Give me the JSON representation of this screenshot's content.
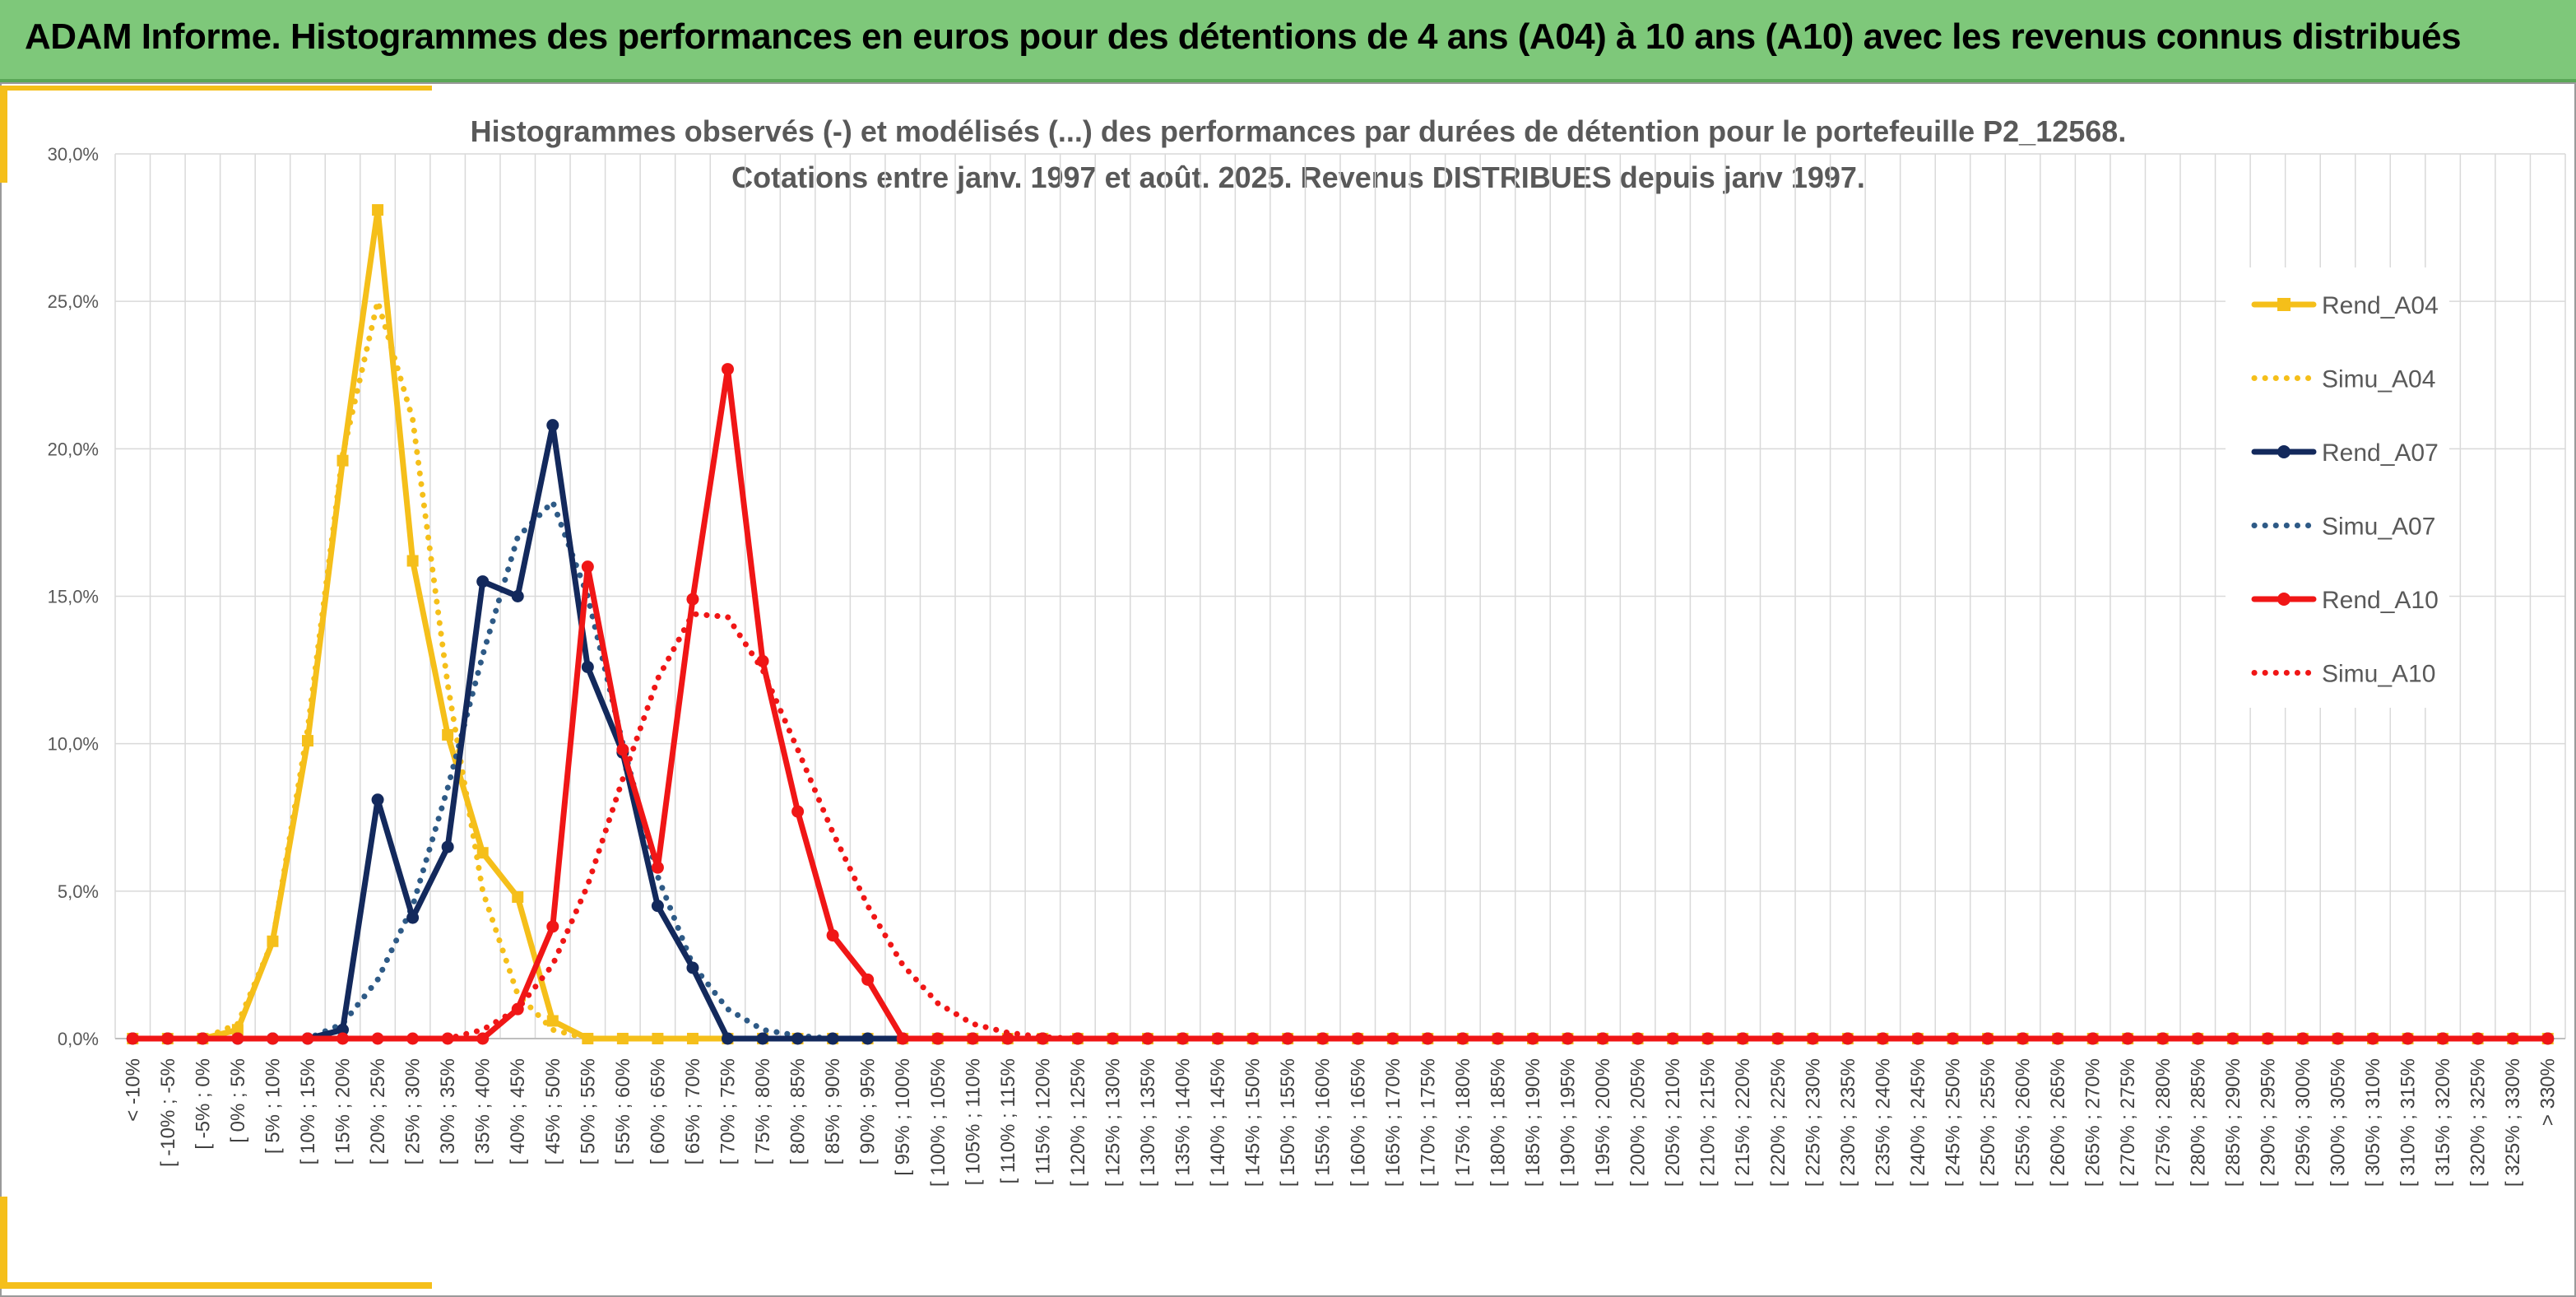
{
  "page": {
    "banner_title": "ADAM Informe. Histogrammes des performances en euros pour des détentions de 4 ans (A04) à 10 ans (A10) avec les revenus connus distribués"
  },
  "colors": {
    "banner": "#7ec87a",
    "accent": "#f5bf1a",
    "a04": "#f5bf1a",
    "a07": "#13295c",
    "a07_simu": "#2e5a86",
    "a10": "#f01616"
  },
  "chart_data": {
    "type": "line",
    "title": "Histogrammes observés (-) et modélisés (...) des performances par durées de détention pour le portefeuille P2_12568.",
    "subtitle": "Cotations entre janv. 1997 et août. 2025. Revenus DISTRIBUES depuis janv 1997.",
    "xlabel": "",
    "ylabel": "",
    "ylim": [
      0,
      30
    ],
    "yticks": [
      0,
      5,
      10,
      15,
      20,
      25,
      30
    ],
    "ytick_labels": [
      "0,0%",
      "5,0%",
      "10,0%",
      "15,0%",
      "20,0%",
      "25,0%",
      "30,0%"
    ],
    "grid": true,
    "legend_position": "right",
    "categories": [
      "< -10%",
      "[ -10% ; -5%",
      "[ -5% ; 0%",
      "[ 0% ; 5%",
      "[ 5% ; 10%",
      "[ 10% ; 15%",
      "[ 15% ; 20%",
      "[ 20% ; 25%",
      "[ 25% ; 30%",
      "[ 30% ; 35%",
      "[ 35% ; 40%",
      "[ 40% ; 45%",
      "[ 45% ; 50%",
      "[ 50% ; 55%",
      "[ 55% ; 60%",
      "[ 60% ; 65%",
      "[ 65% ; 70%",
      "[ 70% ; 75%",
      "[ 75% ; 80%",
      "[ 80% ; 85%",
      "[ 85% ; 90%",
      "[ 90% ; 95%",
      "[ 95% ; 100%",
      "[ 100% ; 105%",
      "[ 105% ; 110%",
      "[ 110% ; 115%",
      "[ 115% ; 120%",
      "[ 120% ; 125%",
      "[ 125% ; 130%",
      "[ 130% ; 135%",
      "[ 135% ; 140%",
      "[ 140% ; 145%",
      "[ 145% ; 150%",
      "[ 150% ; 155%",
      "[ 155% ; 160%",
      "[ 160% ; 165%",
      "[ 165% ; 170%",
      "[ 170% ; 175%",
      "[ 175% ; 180%",
      "[ 180% ; 185%",
      "[ 185% ; 190%",
      "[ 190% ; 195%",
      "[ 195% ; 200%",
      "[ 200% ; 205%",
      "[ 205% ; 210%",
      "[ 210% ; 215%",
      "[ 215% ; 220%",
      "[ 220% ; 225%",
      "[ 225% ; 230%",
      "[ 230% ; 235%",
      "[ 235% ; 240%",
      "[ 240% ; 245%",
      "[ 245% ; 250%",
      "[ 250% ; 255%",
      "[ 255% ; 260%",
      "[ 260% ; 265%",
      "[ 265% ; 270%",
      "[ 270% ; 275%",
      "[ 275% ; 280%",
      "[ 280% ; 285%",
      "[ 285% ; 290%",
      "[ 290% ; 295%",
      "[ 295% ; 300%",
      "[ 300% ; 305%",
      "[ 305% ; 310%",
      "[ 310% ; 315%",
      "[ 315% ; 320%",
      "[ 320% ; 325%",
      "[ 325% ; 330%",
      "> 330%"
    ],
    "series": [
      {
        "name": "Rend_A04",
        "style": "solid",
        "marker": "square",
        "color": "#f5bf1a",
        "values": [
          0,
          0,
          0,
          0.3,
          3.3,
          10.1,
          19.6,
          28.1,
          16.2,
          10.3,
          6.3,
          4.8,
          0.6,
          0,
          0,
          0,
          0,
          0,
          0,
          0,
          0,
          0,
          0,
          0,
          0,
          0,
          0,
          0,
          0,
          0,
          0,
          0,
          0,
          0,
          0,
          0,
          0,
          0,
          0,
          0,
          0,
          0,
          0,
          0,
          0,
          0,
          0,
          0,
          0,
          0,
          0,
          0,
          0,
          0,
          0,
          0,
          0,
          0,
          0,
          0,
          0,
          0,
          0,
          0,
          0,
          0,
          0,
          0,
          0,
          0
        ]
      },
      {
        "name": "Simu_A04",
        "style": "dotted",
        "color": "#f5bf1a",
        "values": [
          0,
          0,
          0,
          0.5,
          3.3,
          10.5,
          19.8,
          25,
          21,
          12,
          5,
          1.5,
          0.3,
          0,
          0,
          0,
          0,
          0,
          0,
          0,
          0,
          0,
          0,
          0,
          0,
          0,
          0,
          0,
          0,
          0,
          0,
          0,
          0,
          0,
          0,
          0,
          0,
          0,
          0,
          0,
          0,
          0,
          0,
          0,
          0,
          0,
          0,
          0,
          0,
          0,
          0,
          0,
          0,
          0,
          0,
          0,
          0,
          0,
          0,
          0,
          0,
          0,
          0,
          0,
          0,
          0,
          0,
          0,
          0,
          0
        ]
      },
      {
        "name": "Rend_A07",
        "style": "solid",
        "marker": "circle",
        "color": "#13295c",
        "values": [
          0,
          0,
          0,
          0,
          0,
          0,
          0.3,
          8.1,
          4.1,
          6.5,
          15.5,
          15,
          20.8,
          12.6,
          9.7,
          4.5,
          2.4,
          0,
          0,
          0,
          0,
          0,
          0,
          0,
          0,
          0,
          0,
          0,
          0,
          0,
          0,
          0,
          0,
          0,
          0,
          0,
          0,
          0,
          0,
          0,
          0,
          0,
          0,
          0,
          0,
          0,
          0,
          0,
          0,
          0,
          0,
          0,
          0,
          0,
          0,
          0,
          0,
          0,
          0,
          0,
          0,
          0,
          0,
          0,
          0,
          0,
          0,
          0,
          0,
          0
        ]
      },
      {
        "name": "Simu_A07",
        "style": "dotted",
        "color": "#2e5a86",
        "values": [
          0,
          0,
          0,
          0,
          0,
          0,
          0.5,
          2,
          4.5,
          8.5,
          13,
          17,
          18.2,
          15,
          10,
          5.5,
          2.5,
          1,
          0.3,
          0.1,
          0,
          0,
          0,
          0,
          0,
          0,
          0,
          0,
          0,
          0,
          0,
          0,
          0,
          0,
          0,
          0,
          0,
          0,
          0,
          0,
          0,
          0,
          0,
          0,
          0,
          0,
          0,
          0,
          0,
          0,
          0,
          0,
          0,
          0,
          0,
          0,
          0,
          0,
          0,
          0,
          0,
          0,
          0,
          0,
          0,
          0,
          0,
          0,
          0,
          0
        ]
      },
      {
        "name": "Rend_A10",
        "style": "solid",
        "marker": "circle",
        "color": "#f01616",
        "values": [
          0,
          0,
          0,
          0,
          0,
          0,
          0,
          0,
          0,
          0,
          0,
          1,
          3.8,
          16,
          9.8,
          5.8,
          14.9,
          22.7,
          12.8,
          7.7,
          3.5,
          2,
          0,
          0,
          0,
          0,
          0,
          0,
          0,
          0,
          0,
          0,
          0,
          0,
          0,
          0,
          0,
          0,
          0,
          0,
          0,
          0,
          0,
          0,
          0,
          0,
          0,
          0,
          0,
          0,
          0,
          0,
          0,
          0,
          0,
          0,
          0,
          0,
          0,
          0,
          0,
          0,
          0,
          0,
          0,
          0,
          0,
          0,
          0,
          0
        ]
      },
      {
        "name": "Simu_A10",
        "style": "dotted",
        "color": "#f01616",
        "values": [
          0,
          0,
          0,
          0,
          0,
          0,
          0,
          0,
          0,
          0,
          0.3,
          1,
          2.5,
          5.2,
          8.8,
          12.2,
          14.4,
          14.3,
          12.5,
          9.8,
          7,
          4.5,
          2.5,
          1.2,
          0.5,
          0.2,
          0.05,
          0,
          0,
          0,
          0,
          0,
          0,
          0,
          0,
          0,
          0,
          0,
          0,
          0,
          0,
          0,
          0,
          0,
          0,
          0,
          0,
          0,
          0,
          0,
          0,
          0,
          0,
          0,
          0,
          0,
          0,
          0,
          0,
          0,
          0,
          0,
          0,
          0,
          0,
          0,
          0,
          0,
          0,
          0
        ]
      }
    ]
  }
}
